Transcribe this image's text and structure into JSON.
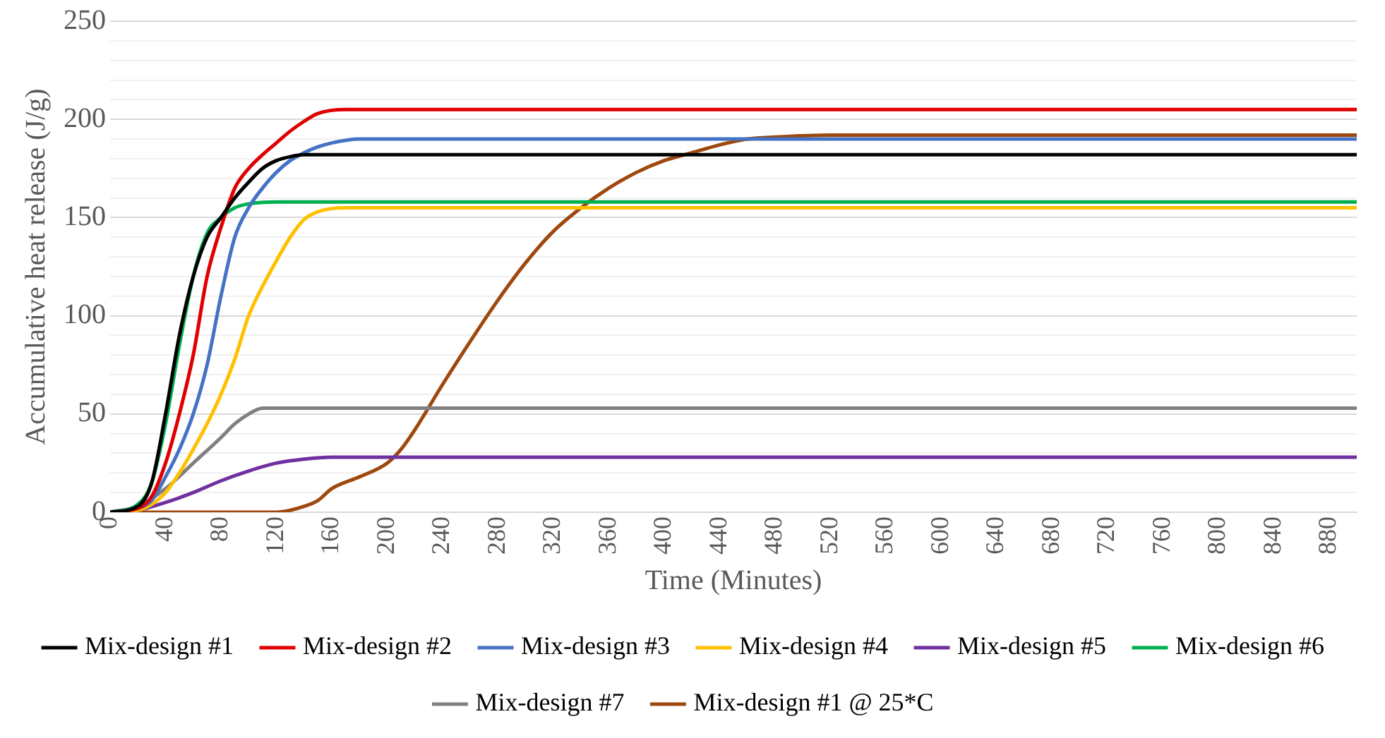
{
  "chart_data": {
    "type": "line",
    "xlabel": "Time (Minutes)",
    "ylabel": "Accumulative heat release (J/g)",
    "xlim": [
      0,
      900
    ],
    "xticks": [
      0,
      40,
      80,
      120,
      160,
      200,
      240,
      280,
      320,
      360,
      400,
      440,
      480,
      520,
      560,
      600,
      640,
      680,
      720,
      760,
      800,
      840,
      880
    ],
    "ylim": [
      0,
      250
    ],
    "yticks": [
      0,
      {
        "value": 10,
        "label": null
      },
      {
        "value": 20,
        "label": null
      },
      {
        "value": 30,
        "label": null
      },
      {
        "value": 40,
        "label": null
      },
      50,
      {
        "value": 60,
        "label": null
      },
      {
        "value": 70,
        "label": null
      },
      {
        "value": 80,
        "label": null
      },
      {
        "value": 90,
        "label": null
      },
      100,
      {
        "value": 110,
        "label": null
      },
      {
        "value": 120,
        "label": null
      },
      {
        "value": 130,
        "label": null
      },
      {
        "value": 140,
        "label": null
      },
      150,
      {
        "value": 160,
        "label": null
      },
      {
        "value": 170,
        "label": null
      },
      {
        "value": 180,
        "label": null
      },
      {
        "value": 190,
        "label": null
      },
      200,
      {
        "value": 210,
        "label": null
      },
      {
        "value": 220,
        "label": null
      },
      {
        "value": 230,
        "label": null
      },
      {
        "value": 240,
        "label": null
      },
      250
    ],
    "grid": "y",
    "legend": "bottom",
    "marker": "none",
    "line_style": "solid",
    "series": [
      {
        "name": "Mix-design #1",
        "color": "#000000",
        "x": [
          0,
          20,
          30,
          40,
          50,
          60,
          70,
          80,
          90,
          100,
          110,
          120,
          130,
          140,
          900
        ],
        "values": [
          0,
          3,
          15,
          50,
          90,
          120,
          140,
          150,
          160,
          168,
          175,
          179,
          181,
          182,
          182
        ]
      },
      {
        "name": "Mix-design #2",
        "color": "#e00000",
        "x": [
          0,
          20,
          30,
          40,
          50,
          60,
          70,
          80,
          90,
          100,
          110,
          120,
          130,
          140,
          150,
          170,
          900
        ],
        "values": [
          0,
          2,
          8,
          25,
          50,
          80,
          120,
          145,
          165,
          175,
          182,
          188,
          194,
          199,
          203,
          205,
          205
        ]
      },
      {
        "name": "Mix-design #3",
        "color": "#4472c4",
        "x": [
          0,
          20,
          30,
          40,
          50,
          60,
          70,
          80,
          90,
          100,
          110,
          120,
          130,
          140,
          150,
          160,
          180,
          900
        ],
        "values": [
          0,
          2,
          6,
          18,
          32,
          50,
          75,
          110,
          140,
          155,
          165,
          173,
          179,
          183,
          186,
          188,
          190,
          190
        ]
      },
      {
        "name": "Mix-design #4",
        "color": "#ffc000",
        "x": [
          0,
          20,
          30,
          40,
          50,
          60,
          70,
          80,
          90,
          100,
          110,
          120,
          130,
          140,
          150,
          170,
          900
        ],
        "values": [
          0,
          1,
          4,
          10,
          20,
          32,
          45,
          60,
          78,
          100,
          115,
          128,
          140,
          149,
          153,
          155,
          155
        ]
      },
      {
        "name": "Mix-design #5",
        "color": "#7030a0",
        "x": [
          0,
          20,
          40,
          60,
          80,
          100,
          120,
          140,
          160,
          900
        ],
        "values": [
          0,
          1,
          5,
          10,
          16,
          21,
          25,
          27,
          28,
          28
        ]
      },
      {
        "name": "Mix-design #6",
        "color": "#00b050",
        "x": [
          0,
          20,
          30,
          40,
          50,
          60,
          70,
          80,
          90,
          100,
          120,
          900
        ],
        "values": [
          0,
          4,
          15,
          45,
          85,
          120,
          142,
          150,
          155,
          157,
          158,
          158
        ]
      },
      {
        "name": "Mix-design #7",
        "color": "#808080",
        "x": [
          0,
          20,
          40,
          60,
          80,
          90,
          100,
          110,
          900
        ],
        "values": [
          0,
          3,
          12,
          25,
          38,
          45,
          50,
          53,
          53
        ]
      },
      {
        "name": "Mix-design #1 @ 25*C",
        "color": "#9e480e",
        "x": [
          0,
          120,
          130,
          140,
          150,
          160,
          180,
          200,
          210,
          220,
          240,
          260,
          280,
          300,
          320,
          340,
          360,
          380,
          400,
          420,
          440,
          460,
          480,
          520,
          900
        ],
        "values": [
          0,
          0,
          1,
          3,
          6,
          12,
          18,
          25,
          32,
          42,
          65,
          87,
          108,
          127,
          143,
          155,
          165,
          173,
          179,
          183,
          187,
          190,
          191,
          192,
          192
        ]
      }
    ]
  }
}
